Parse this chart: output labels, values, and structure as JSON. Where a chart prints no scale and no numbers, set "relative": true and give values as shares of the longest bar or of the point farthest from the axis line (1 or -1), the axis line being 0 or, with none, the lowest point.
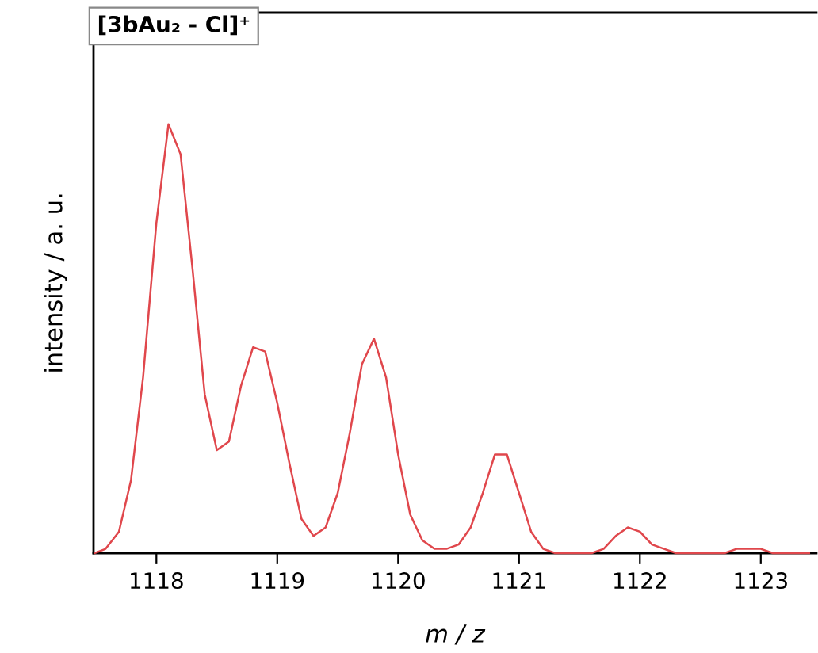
{
  "chart_data": {
    "type": "line",
    "title": "[3bAu₂ - Cl]⁺",
    "xlabel": "m / z",
    "ylabel": "intensity / a. u.",
    "relative": true,
    "xlim": [
      1117.48,
      1123.46
    ],
    "xticks": [
      1118,
      1119,
      1120,
      1121,
      1122,
      1123
    ],
    "grid": false,
    "legend": false,
    "marker": "none",
    "line_style": "solid",
    "series": [
      {
        "color": "#e0474c",
        "x": [
          1117.49,
          1117.58,
          1117.69,
          1117.79,
          1117.89,
          1118.0,
          1118.1,
          1118.2,
          1118.3,
          1118.4,
          1118.5,
          1118.6,
          1118.7,
          1118.8,
          1118.9,
          1119.0,
          1119.1,
          1119.2,
          1119.3,
          1119.4,
          1119.5,
          1119.6,
          1119.7,
          1119.8,
          1119.9,
          1120.0,
          1120.1,
          1120.2,
          1120.3,
          1120.4,
          1120.5,
          1120.6,
          1120.7,
          1120.8,
          1120.9,
          1121.0,
          1121.1,
          1121.2,
          1121.3,
          1121.4,
          1121.5,
          1121.6,
          1121.7,
          1121.8,
          1121.9,
          1122.0,
          1122.1,
          1122.2,
          1122.3,
          1122.4,
          1122.5,
          1122.6,
          1122.7,
          1122.8,
          1122.9,
          1123.0,
          1123.1,
          1123.2,
          1123.3,
          1123.4
        ],
        "values": [
          0.0,
          0.01,
          0.05,
          0.17,
          0.41,
          0.77,
          1.0,
          0.93,
          0.66,
          0.37,
          0.24,
          0.26,
          0.39,
          0.48,
          0.47,
          0.35,
          0.21,
          0.08,
          0.04,
          0.06,
          0.14,
          0.28,
          0.44,
          0.5,
          0.41,
          0.23,
          0.09,
          0.03,
          0.01,
          0.01,
          0.02,
          0.06,
          0.14,
          0.23,
          0.23,
          0.14,
          0.05,
          0.01,
          0.0,
          0.0,
          0.0,
          0.0,
          0.01,
          0.04,
          0.06,
          0.05,
          0.02,
          0.01,
          0.0,
          0.0,
          0.0,
          0.0,
          0.0,
          0.01,
          0.01,
          0.01,
          0.0,
          0.0,
          0.0,
          0.0
        ]
      }
    ]
  }
}
